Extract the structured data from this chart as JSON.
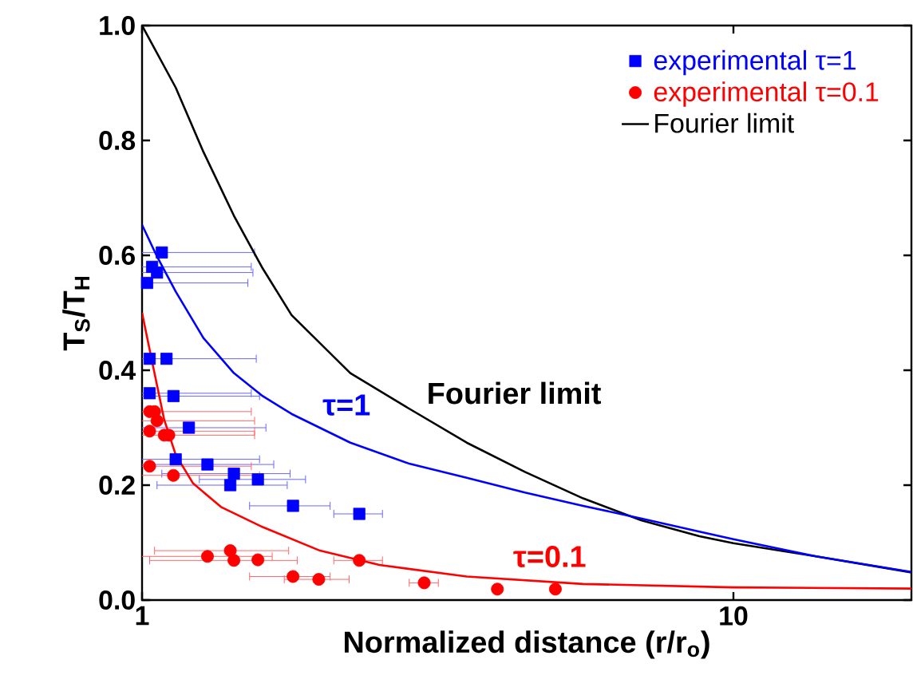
{
  "chart_data": {
    "type": "scatter",
    "xlabel": "Normalized distance (r/r$_{o}$)",
    "ylabel": "T$_{S}$/T$_{H}$",
    "log": "x",
    "xlim": [
      1,
      20
    ],
    "ylim": [
      0,
      1.0
    ],
    "xticks": [
      1,
      10
    ],
    "yticks": [
      {
        "value": 0,
        "label": "0.0"
      },
      {
        "value": 0.2,
        "label": "0.2"
      },
      {
        "value": 0.4,
        "label": "0.4"
      },
      {
        "value": 0.6,
        "label": "0.6"
      },
      {
        "value": 0.8,
        "label": "0.8"
      },
      {
        "value": 1.0,
        "label": "1.0"
      }
    ],
    "grid": false,
    "legend": "top right",
    "annotations": [
      {
        "text": "τ=1",
        "x": 2.0,
        "y": 0.3
      },
      {
        "text": "τ=0.1",
        "x": 4.2,
        "y": 0.036
      },
      {
        "text": "Fourier limit",
        "x": 3.0,
        "y": 0.32
      }
    ],
    "series": [
      {
        "name": "experimental τ=1",
        "type": "scatter",
        "marker": "square",
        "color": "#0000ff",
        "x": [
          1.08,
          1.04,
          1.06,
          1.02,
          1.03,
          1.1,
          1.03,
          1.13,
          1.2,
          1.14,
          1.29,
          1.43,
          1.57,
          1.41,
          1.8,
          2.33
        ],
        "values": [
          0.605,
          0.58,
          0.57,
          0.552,
          0.42,
          0.42,
          0.36,
          0.355,
          0.3,
          0.245,
          0.236,
          0.22,
          0.21,
          0.2,
          0.164,
          0.15
        ],
        "xerrors": [
          0.47,
          0.49,
          0.48,
          0.49,
          null,
          0.46,
          0.5,
          0.45,
          0.42,
          0.44,
          0.38,
          0.35,
          0.32,
          0.35,
          0.28,
          0.22
        ]
      },
      {
        "name": "experimental τ=0.1",
        "type": "scatter",
        "marker": "circle",
        "color": "#ff0000",
        "x": [
          1.03,
          1.05,
          1.06,
          1.03,
          1.09,
          1.11,
          1.03,
          1.13,
          1.29,
          1.41,
          1.43,
          1.57,
          2.33,
          1.8,
          1.99,
          3.0,
          3.99,
          5.0
        ],
        "values": [
          0.328,
          0.328,
          0.312,
          0.294,
          0.287,
          0.287,
          0.233,
          0.217,
          0.076,
          0.086,
          0.069,
          0.07,
          0.069,
          0.041,
          0.036,
          0.03,
          0.019,
          0.019
        ],
        "xerrors": [
          0.5,
          null,
          0.49,
          0.52,
          null,
          0.44,
          0.5,
          0.45,
          0.37,
          0.36,
          0.4,
          null,
          0.22,
          0.28,
          0.25,
          0.17,
          0.05,
          null
        ]
      },
      {
        "name": "Fourier limit",
        "type": "line",
        "marker": "none",
        "color": "#000000",
        "x": [
          1.0,
          1.14,
          1.27,
          1.43,
          1.6,
          1.79,
          2.25,
          2.82,
          3.54,
          4.44,
          5.57,
          6.98,
          8.76,
          10,
          13.8,
          20
        ],
        "values": [
          1.0,
          0.892,
          0.78,
          0.669,
          0.577,
          0.496,
          0.395,
          0.334,
          0.274,
          0.223,
          0.177,
          0.139,
          0.111,
          0.099,
          0.076,
          0.048
        ]
      },
      {
        "type": "line",
        "marker": "none",
        "color": "#0000ff",
        "x": [
          1.0,
          1.06,
          1.14,
          1.27,
          1.43,
          1.6,
          1.79,
          2.25,
          2.82,
          3.54,
          4.44,
          5.57,
          6.98,
          8.76,
          10,
          13.8,
          20
        ],
        "values": [
          0.653,
          0.598,
          0.537,
          0.456,
          0.395,
          0.355,
          0.324,
          0.274,
          0.238,
          0.213,
          0.187,
          0.164,
          0.142,
          0.119,
          0.106,
          0.076,
          0.049
        ]
      },
      {
        "type": "line",
        "marker": "none",
        "color": "#ff0000",
        "x": [
          1.0,
          1.04,
          1.09,
          1.14,
          1.22,
          1.36,
          1.6,
          2.0,
          2.52,
          3.54,
          5.57,
          10,
          20
        ],
        "values": [
          0.5,
          0.415,
          0.314,
          0.253,
          0.203,
          0.162,
          0.127,
          0.086,
          0.061,
          0.041,
          0.028,
          0.022,
          0.02
        ]
      }
    ]
  }
}
